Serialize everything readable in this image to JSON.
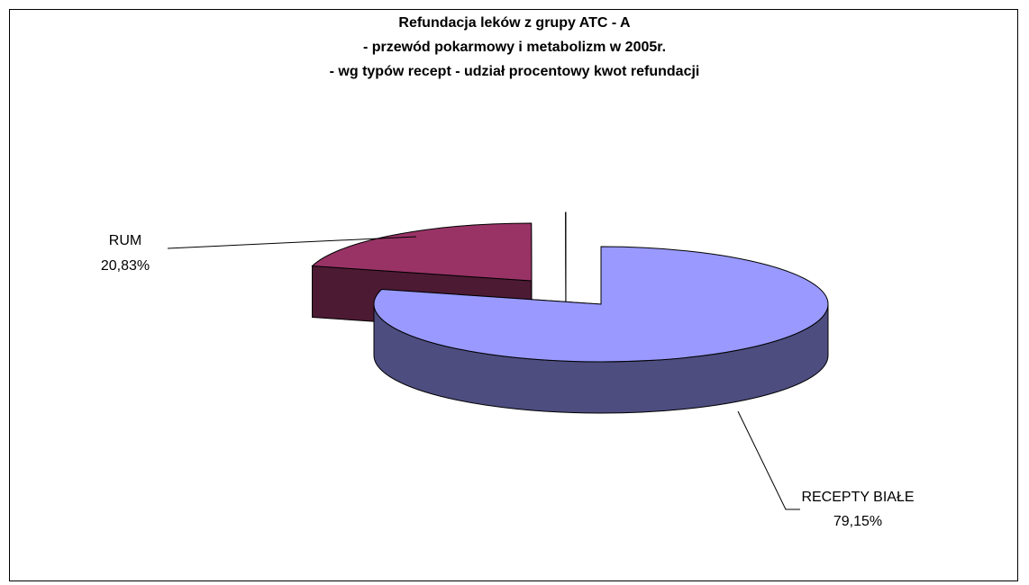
{
  "chart_data": {
    "type": "pie",
    "title_lines": [
      "Refundacja leków z grupy ATC - A",
      "- przewód pokarmowy i metabolizm w 2005r.",
      "- wg typów recept - udział procentowy kwot refundacji"
    ],
    "slices": [
      {
        "name": "RECEPTY BIAŁE",
        "value": 79.15,
        "label": "79,15%",
        "color": "#9999ff",
        "side_color": "#4d4d80"
      },
      {
        "name": "RUM",
        "value": 20.83,
        "label": "20,83%",
        "color": "#993366",
        "side_color": "#4d1a33"
      },
      {
        "name": "",
        "value": 0.02,
        "label": "",
        "color": "#ffffff",
        "side_color": "#ffffff"
      }
    ],
    "legend": "none"
  }
}
